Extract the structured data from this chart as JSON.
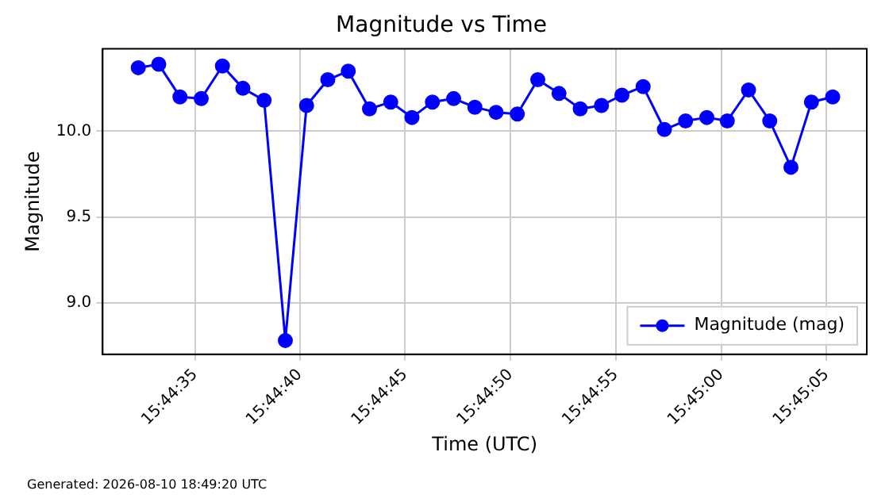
{
  "chart_data": {
    "type": "line",
    "title": "Magnitude vs Time",
    "xlabel": "Time (UTC)",
    "ylabel": "Magnitude",
    "annotations": [
      "Generated: 2026-08-10 18:49:20 UTC"
    ],
    "x": [
      15.74231,
      15.74258,
      15.74286,
      15.74314,
      15.74342,
      15.74369,
      15.74397,
      15.74425,
      15.74453,
      15.74481,
      15.74508,
      15.74536,
      15.74564,
      15.74592,
      15.74619,
      15.74647,
      15.74675,
      15.74703,
      15.74731,
      15.74758,
      15.74786,
      15.74814,
      15.74842,
      15.74869,
      15.74897,
      15.74925,
      15.74953,
      15.74981,
      15.75008,
      15.75036,
      15.75064,
      15.75092,
      15.75119,
      15.75147
    ],
    "series": [
      {
        "name": "Magnitude (mag)",
        "color": "#0000ff",
        "values": [
          10.37,
          10.39,
          10.2,
          10.19,
          10.38,
          10.25,
          10.18,
          8.78,
          10.15,
          10.3,
          10.35,
          10.13,
          10.17,
          10.08,
          10.17,
          10.19,
          10.14,
          10.11,
          10.1,
          10.3,
          10.22,
          10.13,
          10.15,
          10.21,
          10.26,
          10.01,
          10.06,
          10.08,
          10.06,
          10.24,
          10.06,
          9.79,
          10.17,
          10.2
        ]
      }
    ],
    "xlim": [
      15.74184,
      15.75192
    ],
    "xticks": [
      {
        "value": 15.74306,
        "label": "15:44:35"
      },
      {
        "value": 15.74444,
        "label": "15:44:40"
      },
      {
        "value": 15.74583,
        "label": "15:44:45"
      },
      {
        "value": 15.74722,
        "label": "15:44:50"
      },
      {
        "value": 15.74861,
        "label": "15:44:55"
      },
      {
        "value": 15.75,
        "label": "15:45:00"
      },
      {
        "value": 15.75139,
        "label": "15:45:05"
      }
    ],
    "ylim": [
      8.7,
      10.48
    ],
    "yticks": [
      {
        "value": 9,
        "label": "9.0"
      },
      {
        "value": 9.5,
        "label": "9.5"
      },
      {
        "value": 10,
        "label": "10.0"
      }
    ],
    "grid": true,
    "legend": "bottom right",
    "marker": "circle",
    "line_style": "solid"
  }
}
